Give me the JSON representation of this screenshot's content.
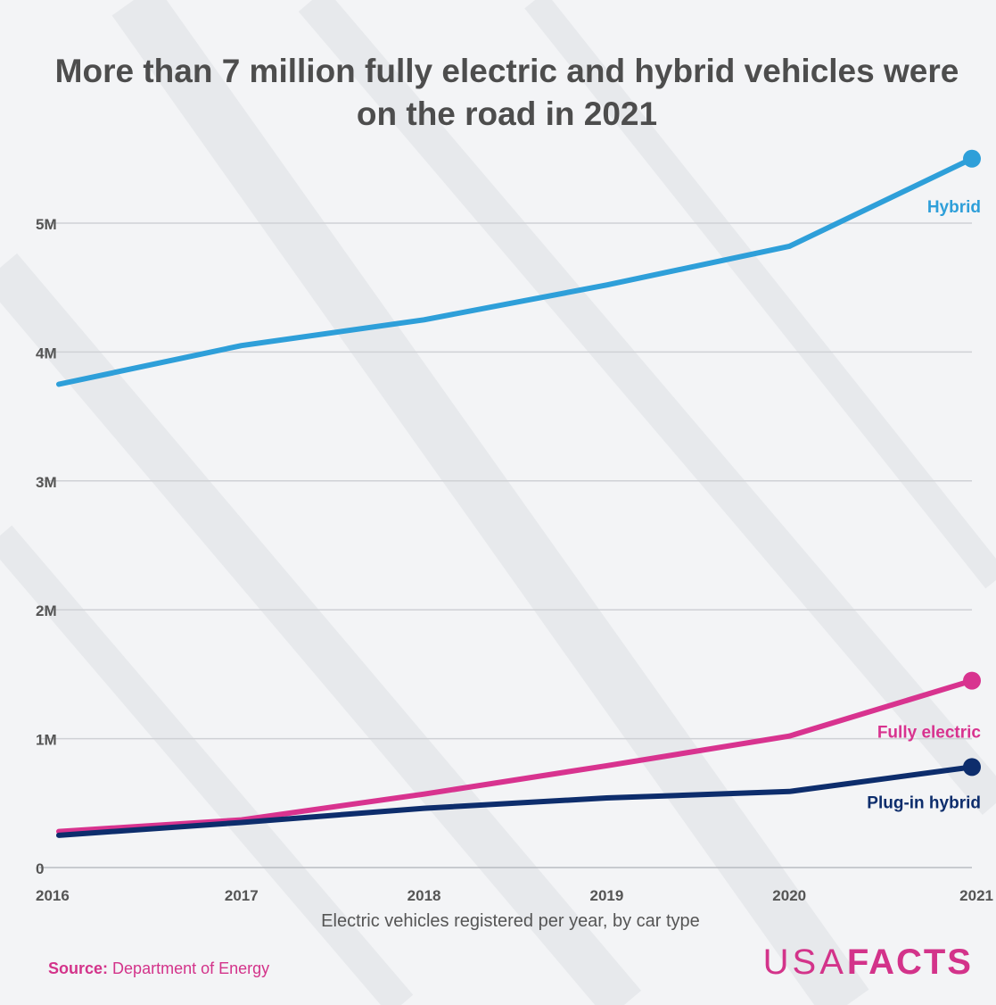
{
  "title": "More than 7 million fully electric and hybrid vehicles were on the road in 2021",
  "source": {
    "label": "Source:",
    "text": "Department of Energy"
  },
  "logo": {
    "light": "USA",
    "bold": "FACTS"
  },
  "colors": {
    "hybrid": "#2e9fd9",
    "fully_electric": "#d8338f",
    "plug_in_hybrid": "#0d2d6c",
    "grid": "#cfd1d5",
    "axis_text": "#555555"
  },
  "chart_data": {
    "type": "line",
    "title": "More than 7 million fully electric and hybrid vehicles were on the road in 2021",
    "xlabel": "Electric vehicles registered per year, by car type",
    "ylabel": "",
    "x": [
      "2016",
      "2017",
      "2018",
      "2019",
      "2020",
      "2021"
    ],
    "ylim": [
      0,
      5000000
    ],
    "yticks": [
      0,
      1000000,
      2000000,
      3000000,
      4000000,
      5000000
    ],
    "ytick_labels": [
      "0",
      "1M",
      "2M",
      "3M",
      "4M",
      "5M"
    ],
    "grid": true,
    "legend": "direct labels at line ends",
    "series": [
      {
        "name": "Hybrid",
        "color": "#2e9fd9",
        "values": [
          3750000,
          4050000,
          4250000,
          4520000,
          4820000,
          5500000
        ]
      },
      {
        "name": "Fully electric",
        "color": "#d8338f",
        "values": [
          280000,
          370000,
          570000,
          790000,
          1020000,
          1450000
        ]
      },
      {
        "name": "Plug-in hybrid",
        "color": "#0d2d6c",
        "values": [
          250000,
          350000,
          460000,
          540000,
          590000,
          780000
        ]
      }
    ]
  }
}
